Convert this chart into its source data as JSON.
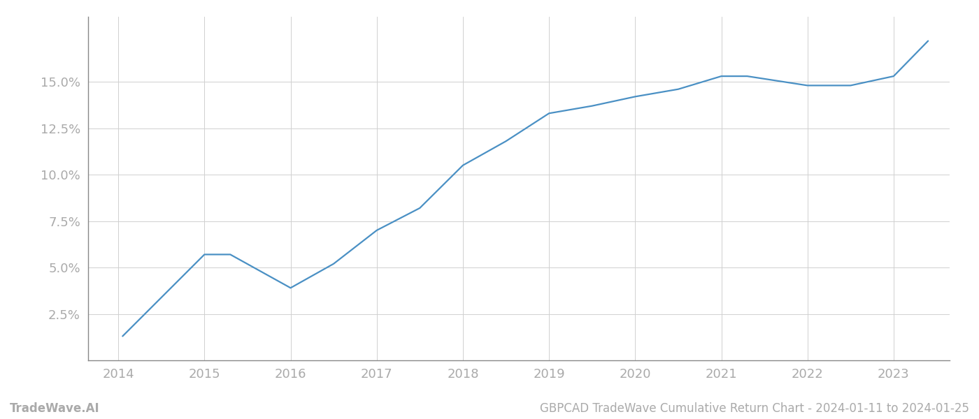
{
  "x_years": [
    2014.05,
    2015.0,
    2015.3,
    2016.0,
    2016.5,
    2017.0,
    2017.5,
    2018.0,
    2018.5,
    2019.0,
    2019.5,
    2020.0,
    2020.5,
    2021.0,
    2021.3,
    2022.0,
    2022.5,
    2023.0,
    2023.4
  ],
  "y_values": [
    1.3,
    5.7,
    5.7,
    3.9,
    5.2,
    7.0,
    8.2,
    10.5,
    11.8,
    13.3,
    13.7,
    14.2,
    14.6,
    15.3,
    15.3,
    14.8,
    14.8,
    15.3,
    17.2
  ],
  "line_color": "#4A90C4",
  "line_width": 1.6,
  "background_color": "#ffffff",
  "grid_color": "#d0d0d0",
  "y_ticks": [
    2.5,
    5.0,
    7.5,
    10.0,
    12.5,
    15.0
  ],
  "x_ticks": [
    2014,
    2015,
    2016,
    2017,
    2018,
    2019,
    2020,
    2021,
    2022,
    2023
  ],
  "xlim": [
    2013.65,
    2023.65
  ],
  "ylim": [
    0.0,
    18.5
  ],
  "footer_left": "TradeWave.AI",
  "footer_right": "GBPCAD TradeWave Cumulative Return Chart - 2024-01-11 to 2024-01-25",
  "footer_color": "#aaaaaa",
  "footer_fontsize": 12,
  "tick_label_color": "#aaaaaa",
  "tick_fontsize": 13,
  "left_spine_color": "#888888",
  "bottom_spine_color": "#888888"
}
